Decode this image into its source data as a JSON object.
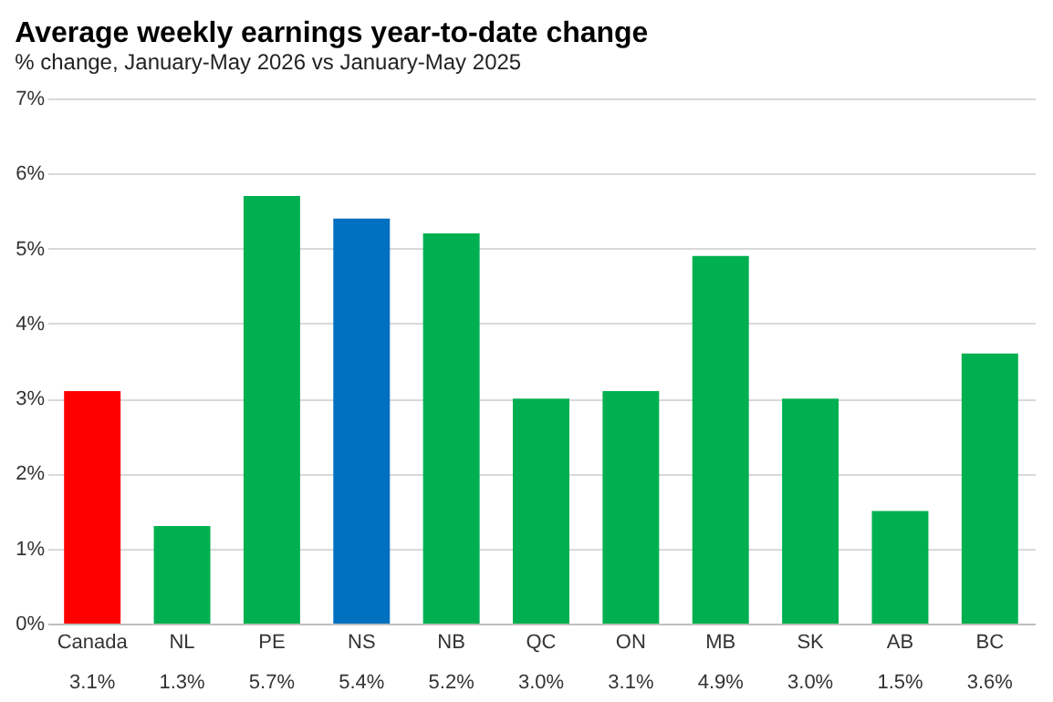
{
  "chart_data": {
    "type": "bar",
    "title": "Average weekly earnings year-to-date change",
    "subtitle": "% change, January-May  2026 vs January-May  2025",
    "categories": [
      "Canada",
      "NL",
      "PE",
      "NS",
      "NB",
      "QC",
      "ON",
      "MB",
      "SK",
      "AB",
      "BC"
    ],
    "values": [
      3.1,
      1.3,
      5.7,
      5.4,
      5.2,
      3.0,
      3.1,
      4.9,
      3.0,
      1.5,
      3.6
    ],
    "colors": [
      "#ff0000",
      "#00b050",
      "#00b050",
      "#0070c0",
      "#00b050",
      "#00b050",
      "#00b050",
      "#00b050",
      "#00b050",
      "#00b050",
      "#00b050"
    ],
    "value_labels": [
      "3.1%",
      "1.3%",
      "5.7%",
      "5.4%",
      "5.2%",
      "3.0%",
      "3.1%",
      "4.9%",
      "3.0%",
      "1.5%",
      "3.6%"
    ],
    "ylim": [
      0,
      7
    ],
    "yticks": [
      {
        "value": 0,
        "label": "0%"
      },
      {
        "value": 1,
        "label": "1%"
      },
      {
        "value": 2,
        "label": "2%"
      },
      {
        "value": 3,
        "label": "3%"
      },
      {
        "value": 4,
        "label": "4%"
      },
      {
        "value": 5,
        "label": "5%"
      },
      {
        "value": 6,
        "label": "6%"
      },
      {
        "value": 7,
        "label": "7%"
      }
    ],
    "grid": "y"
  }
}
